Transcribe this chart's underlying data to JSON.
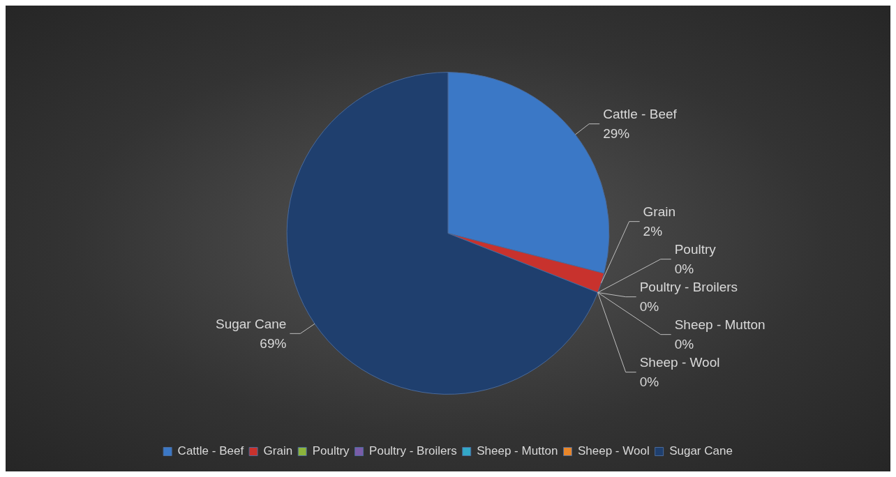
{
  "chart_data": {
    "type": "pie",
    "categories": [
      "Cattle - Beef",
      "Grain",
      "Poultry",
      "Poultry - Broilers",
      "Sheep - Mutton",
      "Sheep - Wool",
      "Sugar Cane"
    ],
    "values": [
      29,
      2,
      0,
      0,
      0,
      0,
      69
    ],
    "value_labels": [
      "29%",
      "2%",
      "0%",
      "0%",
      "0%",
      "0%",
      "69%"
    ],
    "colors": [
      "#3b78c6",
      "#c8322d",
      "#8cb43c",
      "#7a5ca8",
      "#33a8c8",
      "#e8862a",
      "#1f3f6e"
    ],
    "legend": "bottom"
  }
}
